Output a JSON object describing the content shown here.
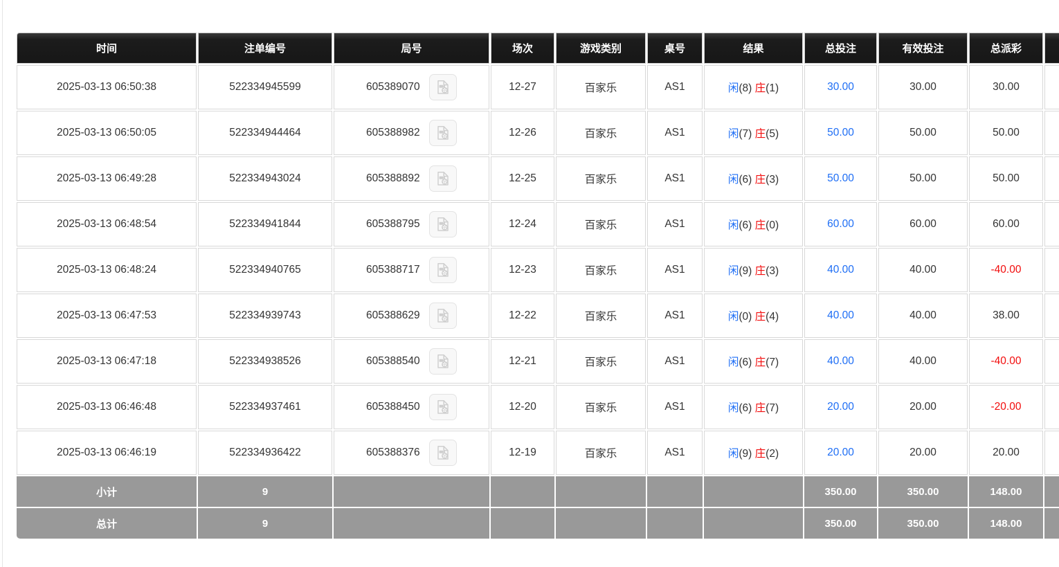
{
  "colors": {
    "accent_blue": "#1e6ef5",
    "accent_red": "#f20d0d",
    "header_bg": "#1c1c1c",
    "summary_bg": "#999999",
    "body_text": "#333333"
  },
  "table": {
    "columns": [
      {
        "key": "time",
        "label": "时间"
      },
      {
        "key": "bet-id",
        "label": "注单编号"
      },
      {
        "key": "round",
        "label": "局号"
      },
      {
        "key": "session",
        "label": "场次"
      },
      {
        "key": "game-type",
        "label": "游戏类别"
      },
      {
        "key": "table-no",
        "label": "桌号"
      },
      {
        "key": "result",
        "label": "结果"
      },
      {
        "key": "total-bet",
        "label": "总投注"
      },
      {
        "key": "valid-bet",
        "label": "有效投注"
      },
      {
        "key": "payout",
        "label": "总派彩"
      },
      {
        "key": "extra",
        "label": ""
      }
    ],
    "result_labels": {
      "player": "闲",
      "banker": "庄"
    },
    "video_icon_name": "video-replay-icon",
    "rows": [
      {
        "time": "2025-03-13 06:50:38",
        "bet_id": "522334945599",
        "round": "605389070",
        "session": "12-27",
        "game": "百家乐",
        "table_no": "AS1",
        "result": {
          "player": "8",
          "banker": "1"
        },
        "total_bet": "30.00",
        "valid_bet": "30.00",
        "payout": "30.00"
      },
      {
        "time": "2025-03-13 06:50:05",
        "bet_id": "522334944464",
        "round": "605388982",
        "session": "12-26",
        "game": "百家乐",
        "table_no": "AS1",
        "result": {
          "player": "7",
          "banker": "5"
        },
        "total_bet": "50.00",
        "valid_bet": "50.00",
        "payout": "50.00"
      },
      {
        "time": "2025-03-13 06:49:28",
        "bet_id": "522334943024",
        "round": "605388892",
        "session": "12-25",
        "game": "百家乐",
        "table_no": "AS1",
        "result": {
          "player": "6",
          "banker": "3"
        },
        "total_bet": "50.00",
        "valid_bet": "50.00",
        "payout": "50.00"
      },
      {
        "time": "2025-03-13 06:48:54",
        "bet_id": "522334941844",
        "round": "605388795",
        "session": "12-24",
        "game": "百家乐",
        "table_no": "AS1",
        "result": {
          "player": "6",
          "banker": "0"
        },
        "total_bet": "60.00",
        "valid_bet": "60.00",
        "payout": "60.00"
      },
      {
        "time": "2025-03-13 06:48:24",
        "bet_id": "522334940765",
        "round": "605388717",
        "session": "12-23",
        "game": "百家乐",
        "table_no": "AS1",
        "result": {
          "player": "9",
          "banker": "3"
        },
        "total_bet": "40.00",
        "valid_bet": "40.00",
        "payout": "-40.00"
      },
      {
        "time": "2025-03-13 06:47:53",
        "bet_id": "522334939743",
        "round": "605388629",
        "session": "12-22",
        "game": "百家乐",
        "table_no": "AS1",
        "result": {
          "player": "0",
          "banker": "4"
        },
        "total_bet": "40.00",
        "valid_bet": "40.00",
        "payout": "38.00"
      },
      {
        "time": "2025-03-13 06:47:18",
        "bet_id": "522334938526",
        "round": "605388540",
        "session": "12-21",
        "game": "百家乐",
        "table_no": "AS1",
        "result": {
          "player": "6",
          "banker": "7"
        },
        "total_bet": "40.00",
        "valid_bet": "40.00",
        "payout": "-40.00"
      },
      {
        "time": "2025-03-13 06:46:48",
        "bet_id": "522334937461",
        "round": "605388450",
        "session": "12-20",
        "game": "百家乐",
        "table_no": "AS1",
        "result": {
          "player": "6",
          "banker": "7"
        },
        "total_bet": "20.00",
        "valid_bet": "20.00",
        "payout": "-20.00"
      },
      {
        "time": "2025-03-13 06:46:19",
        "bet_id": "522334936422",
        "round": "605388376",
        "session": "12-19",
        "game": "百家乐",
        "table_no": "AS1",
        "result": {
          "player": "9",
          "banker": "2"
        },
        "total_bet": "20.00",
        "valid_bet": "20.00",
        "payout": "20.00"
      }
    ],
    "summary_rows": [
      {
        "name": "subtotal",
        "label": "小计",
        "count": "9",
        "total_bet": "350.00",
        "valid_bet": "350.00",
        "payout": "148.00"
      },
      {
        "name": "grand-total",
        "label": "总计",
        "count": "9",
        "total_bet": "350.00",
        "valid_bet": "350.00",
        "payout": "148.00"
      }
    ]
  }
}
